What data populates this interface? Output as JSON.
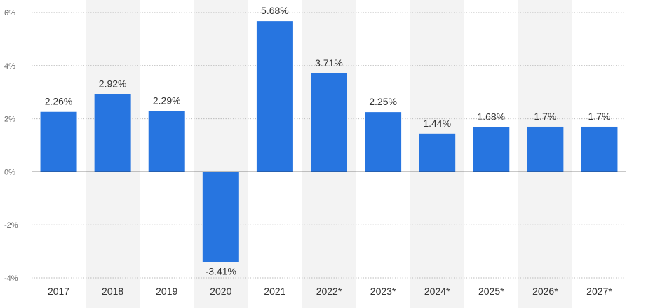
{
  "chart_data": {
    "type": "bar",
    "categories": [
      "2017",
      "2018",
      "2019",
      "2020",
      "2021",
      "2022*",
      "2023*",
      "2024*",
      "2025*",
      "2026*",
      "2027*"
    ],
    "values": [
      2.26,
      2.92,
      2.29,
      -3.41,
      5.68,
      3.71,
      2.25,
      1.44,
      1.68,
      1.7,
      1.7
    ],
    "value_labels": [
      "2.26%",
      "2.92%",
      "2.29%",
      "-3.41%",
      "5.68%",
      "3.71%",
      "2.25%",
      "1.44%",
      "1.68%",
      "1.7%",
      "1.7%"
    ],
    "title": "",
    "xlabel": "",
    "ylabel": "",
    "ylim": [
      -4,
      6
    ],
    "yticks": [
      6,
      4,
      2,
      0,
      -2,
      -4
    ],
    "ytick_labels": [
      "6%",
      "4%",
      "2%",
      "0%",
      "-2%",
      "-4%"
    ],
    "grid": true,
    "legend": "none",
    "colors": {
      "bar": "#2775e0",
      "band": "#f3f3f3",
      "grid": "#bbbbbb",
      "zero_line": "#222222"
    }
  }
}
